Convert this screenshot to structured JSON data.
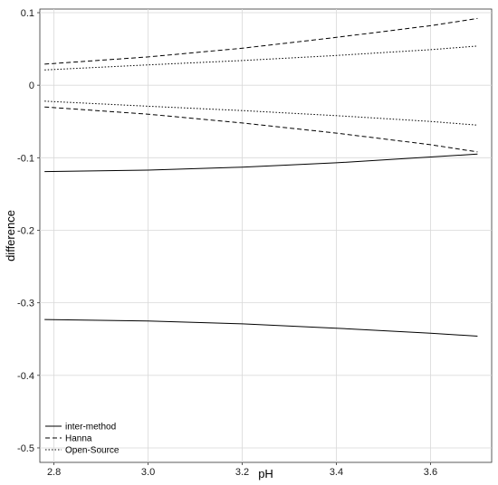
{
  "chart_data": {
    "type": "line",
    "title": "",
    "xlabel": "pH",
    "ylabel": "difference",
    "xlim": [
      2.77,
      3.73
    ],
    "ylim": [
      -0.52,
      0.105
    ],
    "x_ticks": [
      2.8,
      3.0,
      3.2,
      3.4,
      3.6
    ],
    "x_tick_labels": [
      "2.8",
      "3.0",
      "3.2",
      "3.4",
      "3.6"
    ],
    "y_ticks": [
      0.1,
      0.0,
      -0.1,
      -0.2,
      -0.3,
      -0.4,
      -0.5
    ],
    "y_tick_labels": [
      "0.1",
      "0",
      "-0.1",
      "-0.2",
      "-0.3",
      "-0.4",
      "-0.5"
    ],
    "grid": true,
    "legend_position": "bottom-left",
    "legend": [
      {
        "label": "inter-method",
        "style": "solid"
      },
      {
        "label": "Hanna",
        "style": "dashed"
      },
      {
        "label": "Open-Source",
        "style": "dotted"
      }
    ],
    "series": [
      {
        "name": "inter-method",
        "style": "solid",
        "part": "upper",
        "x": [
          2.78,
          3.0,
          3.2,
          3.4,
          3.6,
          3.7
        ],
        "y": [
          -0.119,
          -0.117,
          -0.113,
          -0.107,
          -0.099,
          -0.095
        ]
      },
      {
        "name": "inter-method",
        "style": "solid",
        "part": "lower",
        "x": [
          2.78,
          3.0,
          3.2,
          3.4,
          3.6,
          3.7
        ],
        "y": [
          -0.323,
          -0.325,
          -0.329,
          -0.335,
          -0.342,
          -0.346
        ]
      },
      {
        "name": "Hanna",
        "style": "dashed",
        "part": "upper",
        "x": [
          2.78,
          3.0,
          3.2,
          3.4,
          3.6,
          3.7
        ],
        "y": [
          0.029,
          0.039,
          0.051,
          0.066,
          0.082,
          0.092
        ]
      },
      {
        "name": "Hanna",
        "style": "dashed",
        "part": "lower",
        "x": [
          2.78,
          3.0,
          3.2,
          3.4,
          3.6,
          3.7
        ],
        "y": [
          -0.03,
          -0.04,
          -0.052,
          -0.066,
          -0.082,
          -0.092
        ]
      },
      {
        "name": "Open-Source",
        "style": "dotted",
        "part": "upper",
        "x": [
          2.78,
          3.0,
          3.2,
          3.4,
          3.6,
          3.7
        ],
        "y": [
          0.021,
          0.028,
          0.034,
          0.041,
          0.049,
          0.054
        ]
      },
      {
        "name": "Open-Source",
        "style": "dotted",
        "part": "lower",
        "x": [
          2.78,
          3.0,
          3.2,
          3.4,
          3.6,
          3.7
        ],
        "y": [
          -0.022,
          -0.029,
          -0.035,
          -0.042,
          -0.05,
          -0.055
        ]
      }
    ]
  }
}
